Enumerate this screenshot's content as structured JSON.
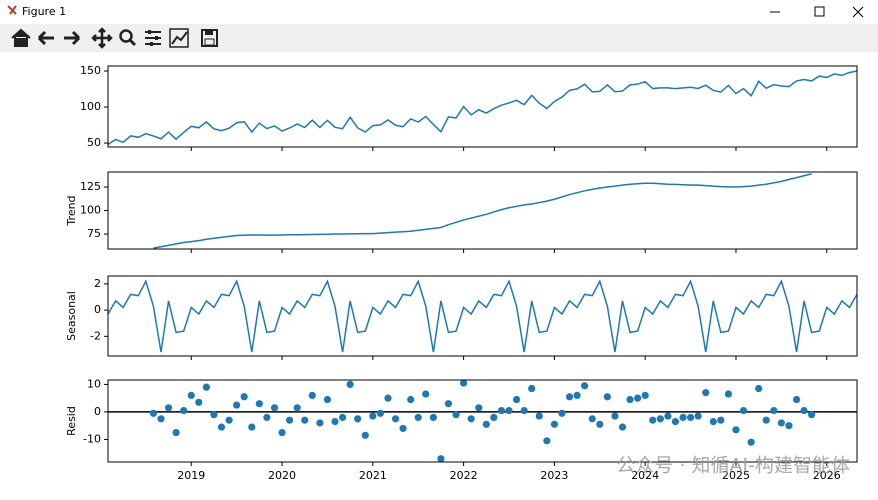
{
  "window": {
    "title": "Figure 1"
  },
  "watermark": "公众号 · 知循AI-构建智能体",
  "chart_data": {
    "type": "decomposition",
    "x": [
      2018.083,
      2018.167,
      2018.25,
      2018.333,
      2018.417,
      2018.5,
      2018.583,
      2018.667,
      2018.75,
      2018.833,
      2018.917,
      2019,
      2019.083,
      2019.167,
      2019.25,
      2019.333,
      2019.417,
      2019.5,
      2019.583,
      2019.667,
      2019.75,
      2019.833,
      2019.917,
      2020,
      2020.083,
      2020.167,
      2020.25,
      2020.333,
      2020.417,
      2020.5,
      2020.583,
      2020.667,
      2020.75,
      2020.833,
      2020.917,
      2021,
      2021.083,
      2021.167,
      2021.25,
      2021.333,
      2021.417,
      2021.5,
      2021.583,
      2021.667,
      2021.75,
      2021.833,
      2021.917,
      2022,
      2022.083,
      2022.167,
      2022.25,
      2022.333,
      2022.417,
      2022.5,
      2022.583,
      2022.667,
      2022.75,
      2022.833,
      2022.917,
      2023,
      2023.083,
      2023.167,
      2023.25,
      2023.333,
      2023.417,
      2023.5,
      2023.583,
      2023.667,
      2023.75,
      2023.833,
      2023.917,
      2024,
      2024.083,
      2024.167,
      2024.25,
      2024.333,
      2024.417,
      2024.5,
      2024.583,
      2024.667,
      2024.75,
      2024.833,
      2024.917,
      2025,
      2025.083,
      2025.167,
      2025.25,
      2025.333,
      2025.417,
      2025.5,
      2025.583,
      2025.667,
      2025.75,
      2025.833,
      2025.917,
      2026,
      2026.083,
      2026.167,
      2026.25,
      2026.333
    ],
    "xlim": [
      2018.083,
      2026.333
    ],
    "xticks": [
      2019,
      2020,
      2021,
      2022,
      2023,
      2024,
      2025,
      2026
    ],
    "color": "#1f77b4",
    "panels": [
      {
        "type": "line",
        "ylim": [
          44.5,
          157
        ],
        "yticks": [
          50,
          100,
          150
        ],
        "values": [
          48,
          55,
          51,
          60,
          58,
          63,
          59.8,
          55.8,
          65.2,
          55.3,
          64.9,
          73.2,
          71.2,
          79.2,
          69.7,
          67.2,
          70.6,
          78.2,
          79.6,
          65.3,
          77.7,
          70.1,
          73.8,
          66.7,
          70.9,
          76.5,
          71.6,
          81.7,
          71.7,
          81.5,
          71.8,
          69.9,
          85.9,
          71.1,
          65.3,
          74.2,
          75.2,
          82.2,
          74.7,
          72.7,
          83.6,
          79.2,
          86.8,
          75.8,
          65.7,
          86.3,
          84.9,
          100.7,
          89.2,
          96.2,
          91.7,
          97.7,
          102.6,
          105.7,
          109.3,
          103.3,
          116.2,
          105.3,
          97.9,
          107.7,
          113.7,
          123.2,
          125.2,
          131.7,
          121.1,
          121.7,
          130.8,
          121.3,
          122.2,
          130.8,
          131.9,
          135.2,
          125.7,
          126.7,
          126.7,
          125.5,
          126.6,
          127.4,
          125.8,
          130.3,
          123.2,
          120.8,
          130.1,
          118.7,
          125.7,
          115.7,
          135.7,
          126.2,
          131.1,
          129.2,
          128.3,
          136.3,
          138.2,
          136.3,
          143,
          141,
          146,
          144,
          148,
          150
        ]
      },
      {
        "type": "line",
        "ylabel": "Trend",
        "ylim": [
          59.1,
          141
        ],
        "yticks": [
          75,
          100,
          125
        ],
        "values": [
          null,
          null,
          null,
          null,
          null,
          null,
          60,
          61.5,
          63,
          64.5,
          66,
          67,
          68,
          69.5,
          70.5,
          71.5,
          72.5,
          73.5,
          73.8,
          74,
          74,
          73.8,
          73.9,
          74,
          74.2,
          74.3,
          74.4,
          74.5,
          74.6,
          74.8,
          75,
          75.1,
          75.2,
          75.3,
          75.4,
          75.5,
          76,
          76.5,
          77,
          77.5,
          78,
          79,
          80,
          81,
          82,
          85,
          87.5,
          90,
          92,
          94,
          96,
          98.5,
          101,
          103,
          104.5,
          106,
          107,
          108.5,
          110,
          112,
          114.5,
          117,
          119,
          121,
          122.5,
          124,
          125,
          126,
          127,
          128,
          128.5,
          129,
          129,
          128.5,
          128,
          127.8,
          127.5,
          127.2,
          127,
          126.5,
          126,
          125.5,
          125.2,
          125,
          125.5,
          126,
          127,
          128,
          129.5,
          131,
          133,
          135,
          137,
          139,
          null,
          null,
          null,
          null,
          null,
          null
        ]
      },
      {
        "type": "line",
        "ylabel": "Seasonal",
        "ylim": [
          -3.5,
          2.6
        ],
        "yticks": [
          -2,
          0,
          2
        ],
        "values": [
          -0.3,
          0.7,
          0.2,
          1.2,
          1.1,
          2.2,
          0.3,
          -3.2,
          0.7,
          -1.7,
          -1.6,
          0.2,
          -0.3,
          0.7,
          0.2,
          1.2,
          1.1,
          2.2,
          0.3,
          -3.2,
          0.7,
          -1.7,
          -1.6,
          0.2,
          -0.3,
          0.7,
          0.2,
          1.2,
          1.1,
          2.2,
          0.3,
          -3.2,
          0.7,
          -1.7,
          -1.6,
          0.2,
          -0.3,
          0.7,
          0.2,
          1.2,
          1.1,
          2.2,
          0.3,
          -3.2,
          0.7,
          -1.7,
          -1.6,
          0.2,
          -0.3,
          0.7,
          0.2,
          1.2,
          1.1,
          2.2,
          0.3,
          -3.2,
          0.7,
          -1.7,
          -1.6,
          0.2,
          -0.3,
          0.7,
          0.2,
          1.2,
          1.1,
          2.2,
          0.3,
          -3.2,
          0.7,
          -1.7,
          -1.6,
          0.2,
          -0.3,
          0.7,
          0.2,
          1.2,
          1.1,
          2.2,
          0.3,
          -3.2,
          0.7,
          -1.7,
          -1.6,
          0.2,
          -0.3,
          0.7,
          0.2,
          1.2,
          1.1,
          2.2,
          0.3,
          -3.2,
          0.7,
          -1.7,
          -1.6,
          0.2,
          -0.3,
          0.7,
          0.2,
          1.2
        ]
      },
      {
        "type": "scatter",
        "ylabel": "Resid",
        "ylim": [
          -18.2,
          11.6
        ],
        "yticks": [
          -10,
          0,
          10
        ],
        "axhline": 0,
        "values": [
          null,
          null,
          null,
          null,
          null,
          null,
          -0.5,
          -2.5,
          1.5,
          -7.5,
          0.5,
          6,
          3.5,
          9,
          -1,
          -5.5,
          -3,
          2.5,
          5.5,
          -5.5,
          3,
          -2,
          1.5,
          -7.5,
          -3,
          1.5,
          -3,
          6,
          -4,
          4.5,
          -3.5,
          -2,
          10,
          -2.5,
          -8.5,
          -1.5,
          -0.5,
          5,
          -2.5,
          -6,
          4.5,
          -2,
          6.5,
          -2,
          -17,
          3,
          -1,
          10.5,
          -2.5,
          1.5,
          -4.5,
          -2,
          0.5,
          0.5,
          4.5,
          0.5,
          8.5,
          -1.5,
          -10.5,
          -4.5,
          -0.5,
          5.5,
          6,
          9.5,
          -2.5,
          -4.5,
          5.5,
          -1.5,
          -5.5,
          4.5,
          5,
          6,
          -3,
          -2.5,
          -1.5,
          -3.5,
          -2,
          -2,
          -1.5,
          7,
          -3.5,
          -3,
          6.5,
          -6.5,
          0.5,
          -11,
          8.5,
          -3,
          0.5,
          -4,
          -5,
          4.5,
          0.5,
          -1,
          null,
          null,
          null,
          null,
          null,
          null
        ]
      }
    ]
  }
}
